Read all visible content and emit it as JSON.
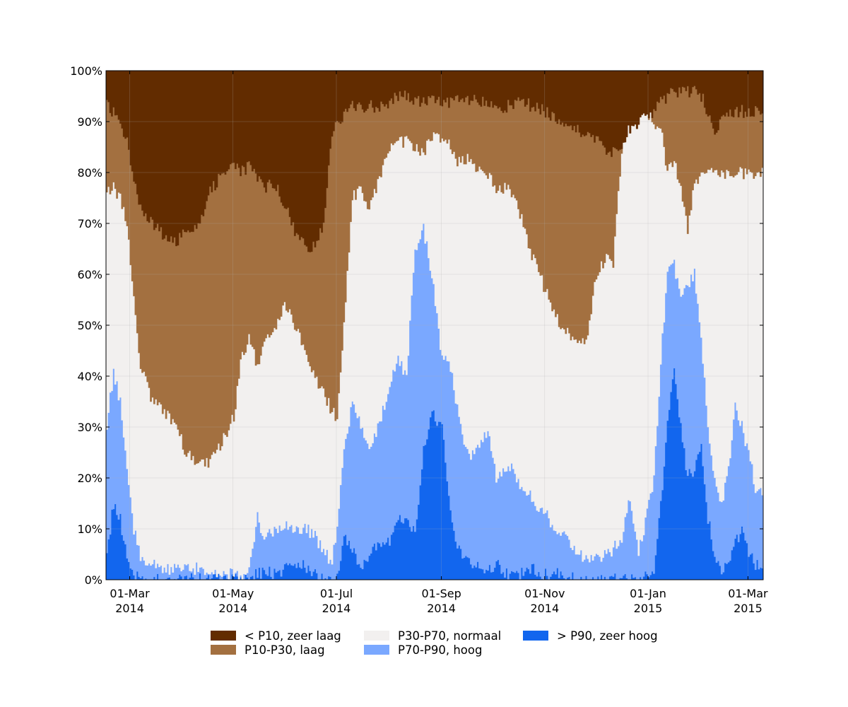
{
  "chart_data": {
    "type": "area",
    "stacked": true,
    "title": "",
    "xlabel": "",
    "ylabel": "",
    "x_start": "2014-02-15",
    "x_end": "2015-03-10",
    "ylim": [
      0,
      100
    ],
    "y_ticks": [
      {
        "value": 0,
        "label": "0%"
      },
      {
        "value": 10,
        "label": "10%"
      },
      {
        "value": 20,
        "label": "20%"
      },
      {
        "value": 30,
        "label": "30%"
      },
      {
        "value": 40,
        "label": "40%"
      },
      {
        "value": 50,
        "label": "50%"
      },
      {
        "value": 60,
        "label": "60%"
      },
      {
        "value": 70,
        "label": "70%"
      },
      {
        "value": 80,
        "label": "80%"
      },
      {
        "value": 90,
        "label": "90%"
      },
      {
        "value": 100,
        "label": "100%"
      }
    ],
    "x_ticks": [
      {
        "date": "2014-03-01",
        "label": "01-Mar",
        "year": "2014"
      },
      {
        "date": "2014-05-01",
        "label": "01-May",
        "year": "2014"
      },
      {
        "date": "2014-07-01",
        "label": "01-Jul",
        "year": "2014"
      },
      {
        "date": "2014-09-01",
        "label": "01-Sep",
        "year": "2014"
      },
      {
        "date": "2014-11-01",
        "label": "01-Nov",
        "year": "2014"
      },
      {
        "date": "2015-01-01",
        "label": "01-Jan",
        "year": "2015"
      },
      {
        "date": "2015-03-01",
        "label": "01-Mar",
        "year": "2015"
      }
    ],
    "legend_position": "bottom",
    "series": [
      {
        "name": "> P90, zeer hoog",
        "color": "#1266ee",
        "boundary": "b1"
      },
      {
        "name": "P70-P90, hoog",
        "color": "#7aa8ff",
        "boundary": "b2"
      },
      {
        "name": "P30-P70, normaal",
        "color": "#f2f0ef",
        "boundary": "b3"
      },
      {
        "name": "P10-P30, laag",
        "color": "#a37040",
        "boundary": "b4"
      },
      {
        "name": "< P10, zeer laag",
        "color": "#622c00",
        "boundary": "top"
      }
    ],
    "cumulative_boundaries": {
      "dates": [
        "2014-02-15",
        "2014-02-19",
        "2014-02-23",
        "2014-02-27",
        "2014-03-03",
        "2014-03-07",
        "2014-03-13",
        "2014-03-20",
        "2014-03-27",
        "2014-04-03",
        "2014-04-10",
        "2014-04-17",
        "2014-04-24",
        "2014-05-01",
        "2014-05-05",
        "2014-05-10",
        "2014-05-15",
        "2014-05-20",
        "2014-05-25",
        "2014-05-31",
        "2014-06-06",
        "2014-06-12",
        "2014-06-18",
        "2014-06-23",
        "2014-06-28",
        "2014-07-01",
        "2014-07-05",
        "2014-07-10",
        "2014-07-15",
        "2014-07-20",
        "2014-07-25",
        "2014-08-01",
        "2014-08-06",
        "2014-08-11",
        "2014-08-16",
        "2014-08-21",
        "2014-08-26",
        "2014-09-01",
        "2014-09-05",
        "2014-09-09",
        "2014-09-13",
        "2014-09-18",
        "2014-09-23",
        "2014-09-28",
        "2014-10-03",
        "2014-10-10",
        "2014-10-17",
        "2014-10-24",
        "2014-11-01",
        "2014-11-06",
        "2014-11-11",
        "2014-11-16",
        "2014-11-21",
        "2014-11-26",
        "2014-12-01",
        "2014-12-06",
        "2014-12-11",
        "2014-12-16",
        "2014-12-21",
        "2014-12-26",
        "2015-01-01",
        "2015-01-04",
        "2015-01-08",
        "2015-01-12",
        "2015-01-16",
        "2015-01-20",
        "2015-01-24",
        "2015-01-28",
        "2015-02-01",
        "2015-02-05",
        "2015-02-09",
        "2015-02-13",
        "2015-02-17",
        "2015-02-21",
        "2015-02-25",
        "2015-03-01",
        "2015-03-05",
        "2015-03-10"
      ],
      "b1": [
        5,
        15,
        12,
        4,
        1,
        0,
        0,
        0,
        0,
        0,
        0,
        0,
        0,
        0,
        0,
        0,
        1,
        2,
        1,
        2,
        2,
        3,
        1,
        0,
        0,
        1,
        9,
        6,
        3,
        5,
        7,
        8,
        12,
        11,
        9,
        26,
        33,
        30,
        16,
        8,
        5,
        3,
        3,
        2,
        3,
        1,
        1,
        2,
        1,
        1,
        1,
        1,
        0,
        0,
        0,
        0,
        0,
        0,
        0,
        0,
        1,
        1,
        15,
        30,
        42,
        30,
        20,
        22,
        27,
        12,
        5,
        2,
        3,
        7,
        10,
        5,
        3,
        1
      ],
      "b2": [
        30,
        41,
        35,
        22,
        10,
        5,
        3,
        2,
        2,
        3,
        2,
        1,
        1,
        1,
        1,
        2,
        12,
        8,
        10,
        11,
        10,
        10,
        9,
        5,
        4,
        10,
        26,
        35,
        30,
        26,
        30,
        38,
        44,
        40,
        65,
        69,
        60,
        43,
        44,
        35,
        28,
        24,
        26,
        29,
        20,
        23,
        18,
        16,
        13,
        10,
        9,
        7,
        5,
        4,
        4,
        5,
        6,
        8,
        16,
        5,
        15,
        20,
        43,
        60,
        62,
        55,
        58,
        60,
        47,
        30,
        20,
        14,
        22,
        34,
        30,
        25,
        18,
        16
      ],
      "b3": [
        76,
        77,
        75,
        70,
        55,
        42,
        36,
        33,
        31,
        25,
        23,
        23,
        27,
        32,
        43,
        47,
        42,
        48,
        49,
        55,
        50,
        45,
        40,
        37,
        33,
        32,
        50,
        75,
        77,
        73,
        78,
        85,
        86,
        86,
        85,
        84,
        87,
        87,
        87,
        82,
        83,
        82,
        80,
        80,
        77,
        77,
        72,
        64,
        57,
        52,
        50,
        47,
        47,
        48,
        60,
        63,
        62,
        85,
        89,
        90,
        91,
        90,
        89,
        80,
        82,
        77,
        69,
        78,
        80,
        80,
        80,
        80,
        80,
        80,
        80,
        80,
        80,
        80
      ],
      "b4": [
        93,
        92,
        89,
        86,
        79,
        73,
        70,
        68,
        66,
        69,
        70,
        76,
        80,
        82,
        80,
        81,
        79,
        77,
        78,
        74,
        68,
        66,
        65,
        70,
        88,
        90,
        91,
        93,
        93,
        93,
        93,
        94,
        95,
        95,
        94,
        94,
        94,
        94,
        94,
        94,
        94,
        94,
        94,
        93,
        93,
        93,
        94,
        93,
        92,
        91,
        90,
        89,
        88,
        88,
        86,
        85,
        84,
        84,
        85,
        86,
        91,
        92,
        94,
        95,
        96,
        96,
        96,
        96,
        95,
        92,
        87,
        90,
        91,
        92,
        92,
        92,
        92,
        92
      ]
    }
  },
  "legend": {
    "items": [
      {
        "label": "< P10, zeer laag",
        "color": "#622c00"
      },
      {
        "label": "P10-P30, laag",
        "color": "#a37040"
      },
      {
        "label": "P30-P70, normaal",
        "color": "#f2f0ef"
      },
      {
        "label": "P70-P90, hoog",
        "color": "#7aa8ff"
      },
      {
        "label": "> P90, zeer hoog",
        "color": "#1266ee"
      }
    ]
  }
}
